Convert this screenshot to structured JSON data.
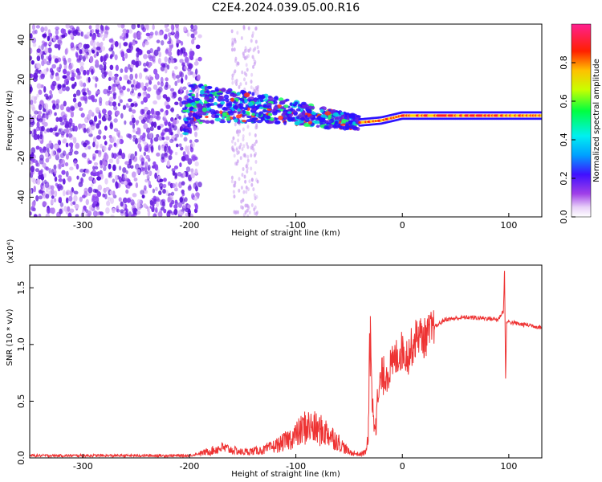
{
  "title": "C2E4.2024.039.05.00.R16",
  "colors": {
    "snr_line": "#ee3333",
    "axis": "#000000"
  },
  "chart_data": [
    {
      "type": "heatmap",
      "xlabel": "Height of straight line (km)",
      "ylabel": "Frequency (Hz)",
      "xlim": [
        -350,
        131
      ],
      "ylim": [
        -50,
        48
      ],
      "xticks": [
        -300,
        -200,
        -100,
        0,
        100
      ],
      "yticks": [
        -40,
        -20,
        0,
        20,
        40
      ],
      "colorbar": {
        "label": "Normalized spectral amplitude",
        "range": [
          0.0,
          1.0
        ],
        "ticks": [
          "0.0",
          "0.2",
          "0.4",
          "0.6",
          "0.8"
        ],
        "colormap": "rainbow (white, purple, blue, cyan, green, yellow, red, magenta)"
      },
      "features": [
        {
          "region": "x -350 to -190",
          "description": "broadband purple noise across all frequencies"
        },
        {
          "region": "x -160 to -135",
          "description": "faint vertical noise band"
        },
        {
          "region": "x -200 to -40",
          "description": "main signal trace, frequency descending from about 8 Hz to about -3 Hz"
        },
        {
          "region": "x -40 to 131",
          "description": "narrow strong trace near 1 to 2 Hz"
        }
      ],
      "trace": {
        "x": [
          -200,
          -150,
          -100,
          -70,
          -40,
          -20,
          0,
          50,
          100,
          131
        ],
        "y": [
          8,
          6,
          3,
          0,
          -2,
          -1,
          1.5,
          1.5,
          1.5,
          1.5
        ]
      }
    },
    {
      "type": "line",
      "xlabel": "Height of straight line (km)",
      "ylabel": "SNR (10 * v/v)",
      "y_multiplier": "(x10⁴)",
      "xlim": [
        -350,
        131
      ],
      "ylim": [
        0,
        1.7
      ],
      "xticks": [
        -300,
        -200,
        -100,
        0,
        100
      ],
      "yticks": [
        "0.0",
        "0.5",
        "1.0",
        "1.5"
      ],
      "series": [
        {
          "x": [
            -350,
            -300,
            -250,
            -200,
            -180,
            -170,
            -160,
            -150,
            -130,
            -115,
            -100,
            -90,
            -80,
            -70,
            -60,
            -50,
            -40,
            -35,
            -32,
            -30,
            -28,
            -25,
            -20,
            -15,
            -10,
            -5,
            0,
            5,
            10,
            15,
            20,
            30,
            40,
            60,
            80,
            90,
            95,
            96,
            97,
            98,
            100,
            110,
            120,
            131
          ],
          "y": [
            0.02,
            0.02,
            0.02,
            0.02,
            0.06,
            0.09,
            0.07,
            0.05,
            0.07,
            0.12,
            0.2,
            0.28,
            0.25,
            0.22,
            0.14,
            0.05,
            0.03,
            0.05,
            0.15,
            1.25,
            0.4,
            0.35,
            0.7,
            0.75,
            0.8,
            0.9,
            0.95,
            0.9,
            1.0,
            1.1,
            1.05,
            1.15,
            1.22,
            1.24,
            1.23,
            1.22,
            1.3,
            1.65,
            0.7,
            1.2,
            1.2,
            1.18,
            1.17,
            1.15
          ]
        }
      ]
    }
  ]
}
